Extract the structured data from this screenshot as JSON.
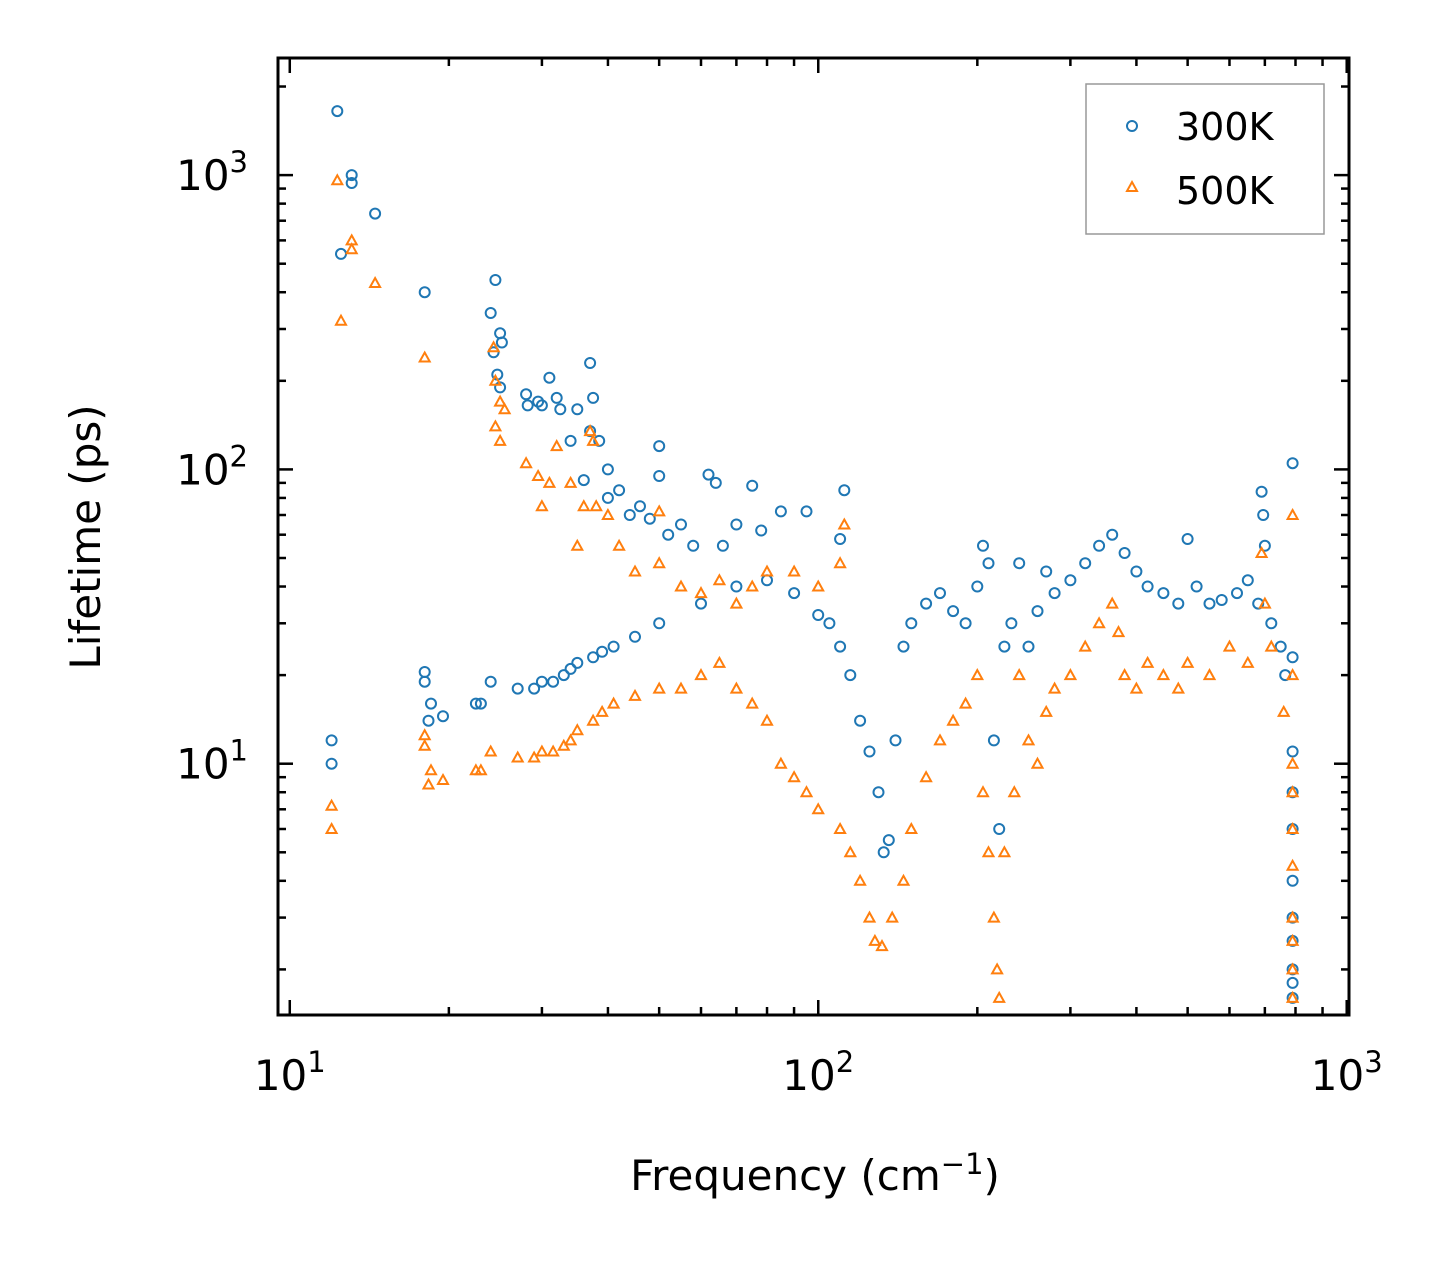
{
  "chart_data": {
    "type": "scatter",
    "title": "",
    "xlabel": "Frequency (cm",
    "xlabel_sup": "−1",
    "xlabel_end": ")",
    "ylabel": "Lifetime (ps)",
    "xscale": "log",
    "yscale": "log",
    "xlim": [
      9.5,
      1010
    ],
    "ylim": [
      1.4,
      2500
    ],
    "xticks": [
      {
        "value": 10,
        "base": "10",
        "exp": "1"
      },
      {
        "value": 100,
        "base": "10",
        "exp": "2"
      },
      {
        "value": 1000,
        "base": "10",
        "exp": "3"
      }
    ],
    "yticks": [
      {
        "value": 10,
        "base": "10",
        "exp": "1"
      },
      {
        "value": 100,
        "base": "10",
        "exp": "2"
      },
      {
        "value": 1000,
        "base": "10",
        "exp": "3"
      }
    ],
    "legend_position": "top-right",
    "series": [
      {
        "name": "300K",
        "marker": "circle",
        "color": "#1f77b4",
        "points": [
          [
            12.3,
            1650
          ],
          [
            13.1,
            1000
          ],
          [
            13.1,
            940
          ],
          [
            12.5,
            540
          ],
          [
            14.5,
            740
          ],
          [
            18.0,
            400
          ],
          [
            24.5,
            440
          ],
          [
            24.0,
            340
          ],
          [
            25.0,
            290
          ],
          [
            25.2,
            270
          ],
          [
            24.3,
            250
          ],
          [
            24.7,
            210
          ],
          [
            25.0,
            190
          ],
          [
            28.0,
            180
          ],
          [
            28.2,
            165
          ],
          [
            29.5,
            170
          ],
          [
            30.0,
            165
          ],
          [
            31.0,
            205
          ],
          [
            32.0,
            175
          ],
          [
            32.5,
            160
          ],
          [
            35.0,
            160
          ],
          [
            37.0,
            230
          ],
          [
            37.5,
            175
          ],
          [
            37.0,
            135
          ],
          [
            38.5,
            125
          ],
          [
            34.0,
            125
          ],
          [
            36.0,
            92
          ],
          [
            40.0,
            100
          ],
          [
            42.0,
            85
          ],
          [
            40.0,
            80
          ],
          [
            44.0,
            70
          ],
          [
            46.0,
            75
          ],
          [
            50.0,
            120
          ],
          [
            50.0,
            95
          ],
          [
            48.0,
            68
          ],
          [
            52.0,
            60
          ],
          [
            55.0,
            65
          ],
          [
            58.0,
            55
          ],
          [
            62.0,
            96
          ],
          [
            64.0,
            90
          ],
          [
            66.0,
            55
          ],
          [
            70.0,
            65
          ],
          [
            75.0,
            88
          ],
          [
            78.0,
            62
          ],
          [
            85.0,
            72
          ],
          [
            95.0,
            72
          ],
          [
            112.0,
            85
          ],
          [
            110.0,
            58
          ],
          [
            12.0,
            12.0
          ],
          [
            12.0,
            10.0
          ],
          [
            18.0,
            20.5
          ],
          [
            18.0,
            19.0
          ],
          [
            18.5,
            16.0
          ],
          [
            18.3,
            14.0
          ],
          [
            19.5,
            14.5
          ],
          [
            22.5,
            16.0
          ],
          [
            23.0,
            16.0
          ],
          [
            24.0,
            19.0
          ],
          [
            27.0,
            18.0
          ],
          [
            29.0,
            18.0
          ],
          [
            30.0,
            19.0
          ],
          [
            31.5,
            19.0
          ],
          [
            33.0,
            20.0
          ],
          [
            34.0,
            21.0
          ],
          [
            35.0,
            22.0
          ],
          [
            37.5,
            23.0
          ],
          [
            39.0,
            24.0
          ],
          [
            41.0,
            25.0
          ],
          [
            45.0,
            27.0
          ],
          [
            50.0,
            30.0
          ],
          [
            60.0,
            35.0
          ],
          [
            70.0,
            40.0
          ],
          [
            80.0,
            42.0
          ],
          [
            90.0,
            38.0
          ],
          [
            100.0,
            32.0
          ],
          [
            105.0,
            30.0
          ],
          [
            110.0,
            25.0
          ],
          [
            115.0,
            20.0
          ],
          [
            120.0,
            14.0
          ],
          [
            125.0,
            11.0
          ],
          [
            130.0,
            8.0
          ],
          [
            133.0,
            5.0
          ],
          [
            136.0,
            5.5
          ],
          [
            140.0,
            12.0
          ],
          [
            145.0,
            25.0
          ],
          [
            150.0,
            30.0
          ],
          [
            160.0,
            35.0
          ],
          [
            170.0,
            38.0
          ],
          [
            180.0,
            33.0
          ],
          [
            190.0,
            30.0
          ],
          [
            200.0,
            40.0
          ],
          [
            205.0,
            55.0
          ],
          [
            210.0,
            48.0
          ],
          [
            215.0,
            12.0
          ],
          [
            220.0,
            6.0
          ],
          [
            225.0,
            25.0
          ],
          [
            232.0,
            30.0
          ],
          [
            240.0,
            48.0
          ],
          [
            250.0,
            25.0
          ],
          [
            260.0,
            33.0
          ],
          [
            270.0,
            45.0
          ],
          [
            280.0,
            38.0
          ],
          [
            300.0,
            42.0
          ],
          [
            320.0,
            48.0
          ],
          [
            340.0,
            55.0
          ],
          [
            360.0,
            60.0
          ],
          [
            380.0,
            52.0
          ],
          [
            400.0,
            45.0
          ],
          [
            420.0,
            40.0
          ],
          [
            450.0,
            38.0
          ],
          [
            480.0,
            35.0
          ],
          [
            500.0,
            58.0
          ],
          [
            520.0,
            40.0
          ],
          [
            550.0,
            35.0
          ],
          [
            580.0,
            36.0
          ],
          [
            620.0,
            38.0
          ],
          [
            650.0,
            42.0
          ],
          [
            680.0,
            35.0
          ],
          [
            690.0,
            84.0
          ],
          [
            695.0,
            70.0
          ],
          [
            700.0,
            55.0
          ],
          [
            720.0,
            30.0
          ],
          [
            750.0,
            25.0
          ],
          [
            765.0,
            20.0
          ],
          [
            790.0,
            105.0
          ],
          [
            790.0,
            23.0
          ],
          [
            790.0,
            11.0
          ],
          [
            790.0,
            8.0
          ],
          [
            790.0,
            6.0
          ],
          [
            790.0,
            4.0
          ],
          [
            790.0,
            3.0
          ],
          [
            790.0,
            2.5
          ],
          [
            790.0,
            2.0
          ],
          [
            790.0,
            1.8
          ],
          [
            790.0,
            1.6
          ]
        ]
      },
      {
        "name": "500K",
        "marker": "triangle",
        "color": "#ff7f0e",
        "points": [
          [
            12.3,
            960
          ],
          [
            13.1,
            600
          ],
          [
            13.1,
            560
          ],
          [
            12.5,
            320
          ],
          [
            14.5,
            430
          ],
          [
            18.0,
            240
          ],
          [
            24.3,
            260
          ],
          [
            24.5,
            200
          ],
          [
            25.0,
            170
          ],
          [
            25.5,
            160
          ],
          [
            24.5,
            140
          ],
          [
            25.0,
            125
          ],
          [
            28.0,
            105
          ],
          [
            29.5,
            95
          ],
          [
            31.0,
            90
          ],
          [
            32.0,
            120
          ],
          [
            34.0,
            90
          ],
          [
            37.0,
            135
          ],
          [
            37.5,
            125
          ],
          [
            36.0,
            75
          ],
          [
            38.0,
            75
          ],
          [
            40.0,
            70
          ],
          [
            30.0,
            75
          ],
          [
            35.0,
            55
          ],
          [
            42.0,
            55
          ],
          [
            45.0,
            45
          ],
          [
            50.0,
            72
          ],
          [
            50.0,
            48
          ],
          [
            55.0,
            40
          ],
          [
            60.0,
            38
          ],
          [
            65.0,
            42
          ],
          [
            70.0,
            35
          ],
          [
            75.0,
            40
          ],
          [
            80.0,
            45
          ],
          [
            90.0,
            45
          ],
          [
            100.0,
            40
          ],
          [
            112.0,
            65
          ],
          [
            110.0,
            48
          ],
          [
            12.0,
            7.2
          ],
          [
            12.0,
            6.0
          ],
          [
            18.0,
            12.5
          ],
          [
            18.0,
            11.5
          ],
          [
            18.5,
            9.5
          ],
          [
            18.3,
            8.5
          ],
          [
            19.5,
            8.8
          ],
          [
            22.5,
            9.5
          ],
          [
            23.0,
            9.5
          ],
          [
            24.0,
            11.0
          ],
          [
            27.0,
            10.5
          ],
          [
            29.0,
            10.5
          ],
          [
            30.0,
            11.0
          ],
          [
            31.5,
            11.0
          ],
          [
            33.0,
            11.5
          ],
          [
            34.0,
            12.0
          ],
          [
            35.0,
            13.0
          ],
          [
            37.5,
            14.0
          ],
          [
            39.0,
            15.0
          ],
          [
            41.0,
            16.0
          ],
          [
            45.0,
            17.0
          ],
          [
            50.0,
            18.0
          ],
          [
            55.0,
            18.0
          ],
          [
            60.0,
            20.0
          ],
          [
            65.0,
            22.0
          ],
          [
            70.0,
            18.0
          ],
          [
            75.0,
            16.0
          ],
          [
            80.0,
            14.0
          ],
          [
            85.0,
            10.0
          ],
          [
            90.0,
            9.0
          ],
          [
            95.0,
            8.0
          ],
          [
            100.0,
            7.0
          ],
          [
            110.0,
            6.0
          ],
          [
            115.0,
            5.0
          ],
          [
            120.0,
            4.0
          ],
          [
            125.0,
            3.0
          ],
          [
            128.0,
            2.5
          ],
          [
            132.0,
            2.4
          ],
          [
            138.0,
            3.0
          ],
          [
            145.0,
            4.0
          ],
          [
            150.0,
            6.0
          ],
          [
            160.0,
            9.0
          ],
          [
            170.0,
            12.0
          ],
          [
            180.0,
            14.0
          ],
          [
            190.0,
            16.0
          ],
          [
            200.0,
            20.0
          ],
          [
            205.0,
            8.0
          ],
          [
            210.0,
            5.0
          ],
          [
            215.0,
            3.0
          ],
          [
            218.0,
            2.0
          ],
          [
            220.0,
            1.6
          ],
          [
            225.0,
            5.0
          ],
          [
            235.0,
            8.0
          ],
          [
            240.0,
            20.0
          ],
          [
            250.0,
            12.0
          ],
          [
            260.0,
            10.0
          ],
          [
            270.0,
            15.0
          ],
          [
            280.0,
            18.0
          ],
          [
            300.0,
            20.0
          ],
          [
            320.0,
            25.0
          ],
          [
            340.0,
            30.0
          ],
          [
            360.0,
            35.0
          ],
          [
            370.0,
            28.0
          ],
          [
            380.0,
            20.0
          ],
          [
            400.0,
            18.0
          ],
          [
            420.0,
            22.0
          ],
          [
            450.0,
            20.0
          ],
          [
            480.0,
            18.0
          ],
          [
            500.0,
            22.0
          ],
          [
            550.0,
            20.0
          ],
          [
            600.0,
            25.0
          ],
          [
            650.0,
            22.0
          ],
          [
            690.0,
            52.0
          ],
          [
            700.0,
            35.0
          ],
          [
            720.0,
            25.0
          ],
          [
            760.0,
            15.0
          ],
          [
            790.0,
            70.0
          ],
          [
            790.0,
            20.0
          ],
          [
            790.0,
            10.0
          ],
          [
            790.0,
            8.0
          ],
          [
            790.0,
            6.0
          ],
          [
            790.0,
            4.5
          ],
          [
            790.0,
            3.0
          ],
          [
            790.0,
            2.5
          ],
          [
            790.0,
            2.0
          ],
          [
            790.0,
            1.6
          ]
        ]
      }
    ]
  }
}
